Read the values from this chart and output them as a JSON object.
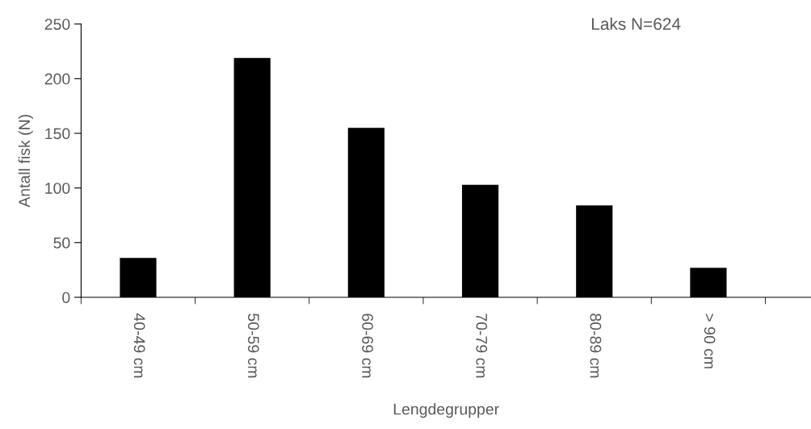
{
  "chart_data": {
    "type": "bar",
    "title": "Laks N=624",
    "xlabel": "Lengdegrupper",
    "ylabel": "Antall fisk (N)",
    "categories": [
      "40-49 cm",
      "50-59 cm",
      "60-69 cm",
      "70-79 cm",
      "80-89 cm",
      "> 90 cm"
    ],
    "values": [
      36,
      219,
      155,
      103,
      84,
      27
    ],
    "color": "#000000",
    "ylim": [
      0,
      250
    ],
    "yticks": [
      0,
      50,
      100,
      150,
      200,
      250
    ],
    "grid": false,
    "legend": false
  }
}
